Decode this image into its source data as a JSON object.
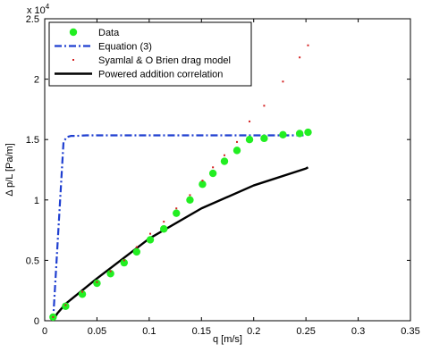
{
  "chart_data": {
    "type": "scatter",
    "title": "",
    "xlabel": "q [m/s]",
    "ylabel": "Δ p/L [Pa/m]",
    "exponent_label": "x 10",
    "exponent_power": "4",
    "xlim": [
      0,
      0.35
    ],
    "ylim": [
      0,
      25000
    ],
    "xticks": [
      0,
      0.05,
      0.1,
      0.15,
      0.2,
      0.25,
      0.3,
      0.35
    ],
    "xtick_labels": [
      "0",
      "0.05",
      "0.1",
      "0.15",
      "0.2",
      "0.25",
      "0.3",
      "0.35"
    ],
    "yticks": [
      0,
      5000,
      10000,
      15000,
      20000,
      25000
    ],
    "ytick_labels": [
      "0",
      "0.5",
      "1",
      "1.5",
      "2",
      "2.5"
    ],
    "grid": false,
    "legend_position": "top-left",
    "series": [
      {
        "name": "Data",
        "style": "marker",
        "color": "#22ee22",
        "x": [
          0.008,
          0.02,
          0.036,
          0.05,
          0.063,
          0.076,
          0.088,
          0.101,
          0.114,
          0.126,
          0.139,
          0.151,
          0.161,
          0.172,
          0.184,
          0.196,
          0.21,
          0.228,
          0.244,
          0.252
        ],
        "y": [
          300,
          1200,
          2200,
          3100,
          3900,
          4800,
          5700,
          6700,
          7600,
          8900,
          10000,
          11300,
          12200,
          13200,
          14100,
          15000,
          15100,
          15400,
          15500,
          15600
        ]
      },
      {
        "name": "Equation (3)",
        "style": "dash-dot",
        "color": "#1f3fd0",
        "x": [
          0.008,
          0.018,
          0.021,
          0.025,
          0.03,
          0.04,
          0.06,
          0.1,
          0.15,
          0.2,
          0.25
        ],
        "y": [
          0,
          14800,
          15200,
          15300,
          15300,
          15350,
          15350,
          15350,
          15350,
          15350,
          15350
        ]
      },
      {
        "name": "Syamlal & O Brien drag model",
        "style": "dot",
        "color": "#d42020",
        "x": [
          0.008,
          0.02,
          0.036,
          0.05,
          0.063,
          0.076,
          0.088,
          0.101,
          0.114,
          0.126,
          0.139,
          0.151,
          0.161,
          0.172,
          0.184,
          0.196,
          0.21,
          0.228,
          0.244,
          0.252
        ],
        "y": [
          300,
          1300,
          2400,
          3200,
          4100,
          5000,
          6100,
          7200,
          8200,
          9300,
          10400,
          11600,
          12700,
          13700,
          14800,
          16500,
          17800,
          19800,
          21800,
          22800
        ]
      },
      {
        "name": "Powered addition correlation",
        "style": "solid",
        "color": "#000000",
        "x": [
          0.008,
          0.012,
          0.02,
          0.05,
          0.1,
          0.15,
          0.2,
          0.25,
          0.252
        ],
        "y": [
          0,
          600,
          1400,
          3500,
          6800,
          9300,
          11200,
          12600,
          12700
        ]
      }
    ]
  }
}
